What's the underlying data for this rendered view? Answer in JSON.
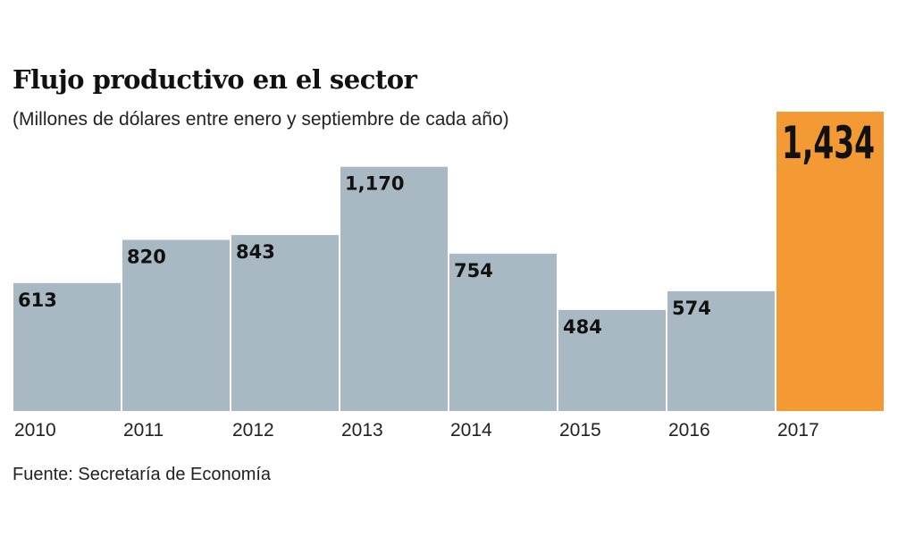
{
  "chart_data": {
    "type": "bar",
    "title": "Flujo productivo en el sector",
    "subtitle": "(Millones de dólares entre enero y septiembre de cada año)",
    "source": "Fuente: Secretaría de Economía",
    "categories": [
      "2010",
      "2011",
      "2012",
      "2013",
      "2014",
      "2015",
      "2016",
      "2017"
    ],
    "values": [
      613,
      820,
      843,
      1170,
      754,
      484,
      574,
      1434
    ],
    "labels": [
      "613",
      "820",
      "843",
      "1,170",
      "754",
      "484",
      "574",
      "1,434"
    ],
    "highlight_index": 7,
    "ylim": [
      0,
      1434
    ],
    "grid": false,
    "colors": {
      "bar": "#a9b9c4",
      "highlight": "#f39a34"
    }
  }
}
